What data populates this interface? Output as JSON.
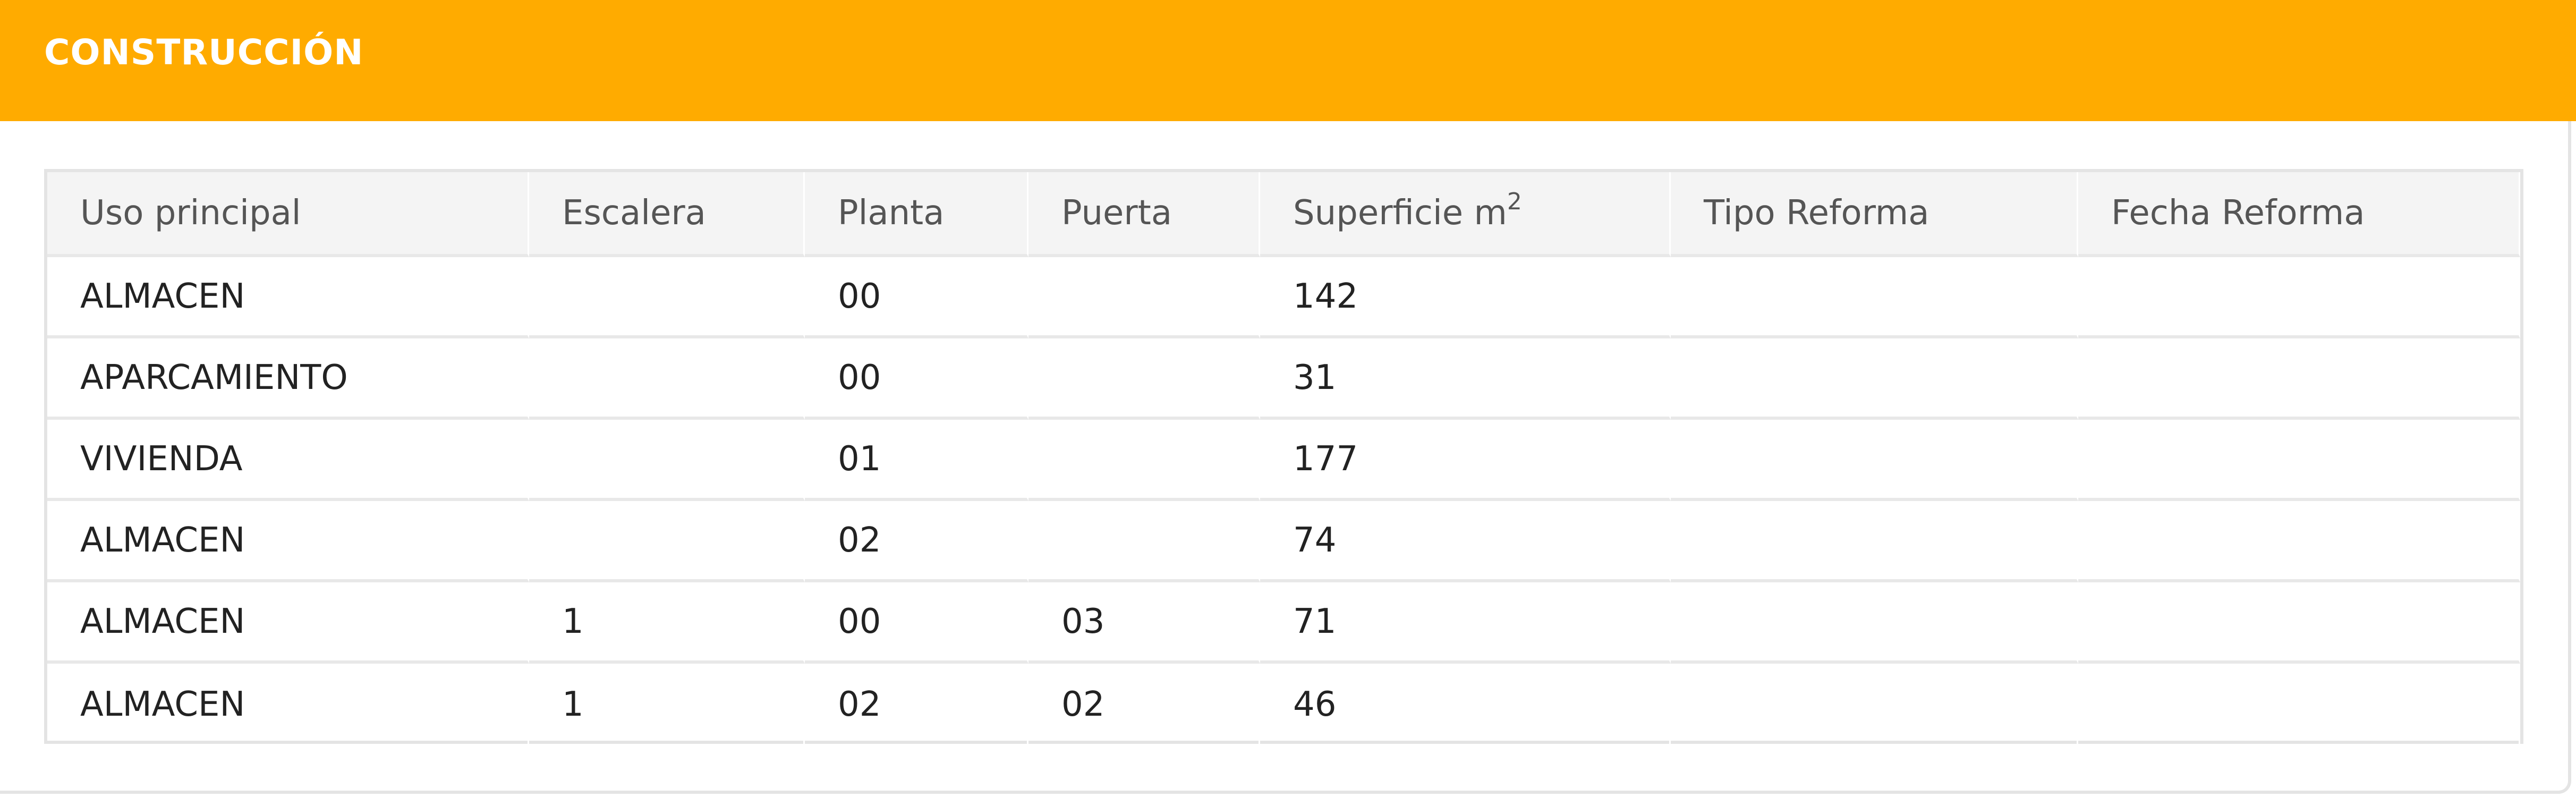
{
  "section": {
    "title": "CONSTRUCCIÓN",
    "accent_color": "#ffab00"
  },
  "table": {
    "columns": [
      "Uso principal",
      "Escalera",
      "Planta",
      "Puerta",
      "Superficie m",
      "Tipo Reforma",
      "Fecha Reforma"
    ],
    "superficie_unit_exponent": "2",
    "rows": [
      [
        "ALMACEN",
        "",
        "00",
        "",
        "142",
        "",
        ""
      ],
      [
        "APARCAMIENTO",
        "",
        "00",
        "",
        "31",
        "",
        ""
      ],
      [
        "VIVIENDA",
        "",
        "01",
        "",
        "177",
        "",
        ""
      ],
      [
        "ALMACEN",
        "",
        "02",
        "",
        "74",
        "",
        ""
      ],
      [
        "ALMACEN",
        "1",
        "00",
        "03",
        "71",
        "",
        ""
      ],
      [
        "ALMACEN",
        "1",
        "02",
        "02",
        "46",
        "",
        ""
      ]
    ]
  }
}
